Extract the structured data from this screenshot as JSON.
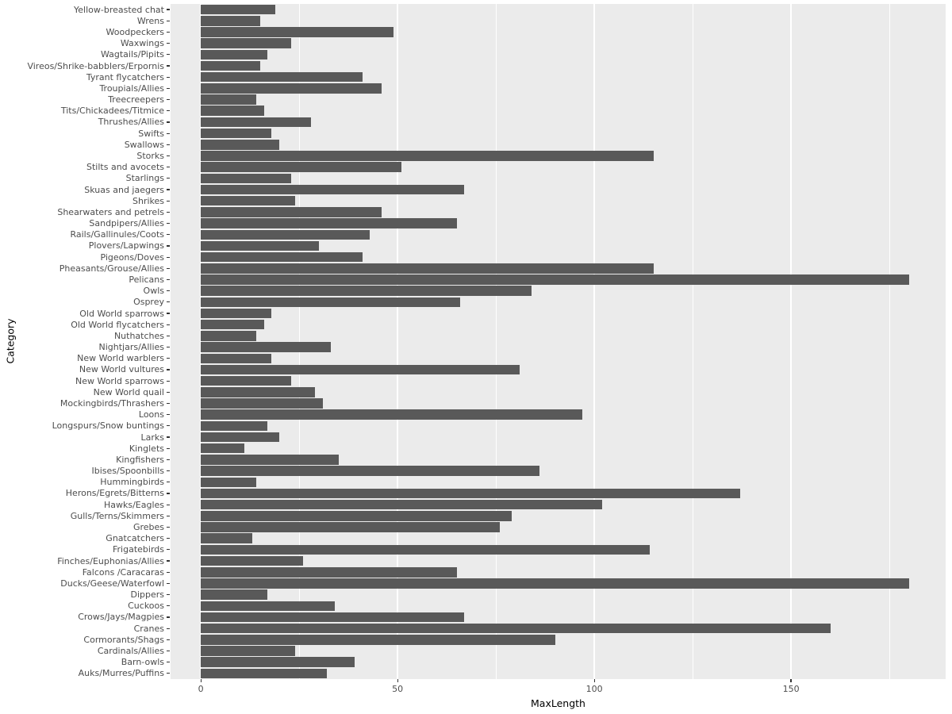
{
  "chart_data": {
    "type": "bar",
    "orientation": "horizontal",
    "title": "",
    "xlabel": "MaxLength",
    "ylabel": "Category",
    "xlim": [
      -7.7,
      189.3
    ],
    "xticks": [
      0,
      50,
      100,
      150
    ],
    "minor_ticks": [
      25,
      75,
      125,
      175
    ],
    "grid": true,
    "legend": "none",
    "panel_bg": "#EBEBEB",
    "bar_color": "#595959",
    "categories": [
      "Yellow-breasted chat",
      "Wrens",
      "Woodpeckers",
      "Waxwings",
      "Wagtails/Pipits",
      "Vireos/Shrike-babblers/Erpornis",
      "Tyrant flycatchers",
      "Troupials/Allies",
      "Treecreepers",
      "Tits/Chickadees/Titmice",
      "Thrushes/Allies",
      "Swifts",
      "Swallows",
      "Storks",
      "Stilts and avocets",
      "Starlings",
      "Skuas and jaegers",
      "Shrikes",
      "Shearwaters and petrels",
      "Sandpipers/Allies",
      "Rails/Gallinules/Coots",
      "Plovers/Lapwings",
      "Pigeons/Doves",
      "Pheasants/Grouse/Allies",
      "Pelicans",
      "Owls",
      "Osprey",
      "Old World sparrows",
      "Old World flycatchers",
      "Nuthatches",
      "Nightjars/Allies",
      "New World warblers",
      "New World vultures",
      "New World sparrows",
      "New World quail",
      "Mockingbirds/Thrashers",
      "Loons",
      "Longspurs/Snow buntings",
      "Larks",
      "Kinglets",
      "Kingfishers",
      "Ibises/Spoonbills",
      "Hummingbirds",
      "Herons/Egrets/Bitterns",
      "Hawks/Eagles",
      "Gulls/Terns/Skimmers",
      "Grebes",
      "Gnatcatchers",
      "Frigatebirds",
      "Finches/Euphonias/Allies",
      "Falcons /Caracaras",
      "Ducks/Geese/Waterfowl",
      "Dippers",
      "Cuckoos",
      "Crows/Jays/Magpies",
      "Cranes",
      "Cormorants/Shags",
      "Cardinals/Allies",
      "Barn-owls",
      "Auks/Murres/Puffins"
    ],
    "values": [
      19,
      15,
      49,
      23,
      17,
      15,
      41,
      46,
      14,
      16,
      28,
      18,
      20,
      115,
      51,
      23,
      67,
      24,
      46,
      65,
      43,
      30,
      41,
      115,
      180,
      84,
      66,
      18,
      16,
      14,
      33,
      18,
      81,
      23,
      29,
      31,
      97,
      17,
      20,
      11,
      35,
      86,
      14,
      137,
      102,
      79,
      76,
      13,
      114,
      26,
      65,
      180,
      17,
      34,
      67,
      160,
      90,
      24,
      39,
      32
    ]
  }
}
